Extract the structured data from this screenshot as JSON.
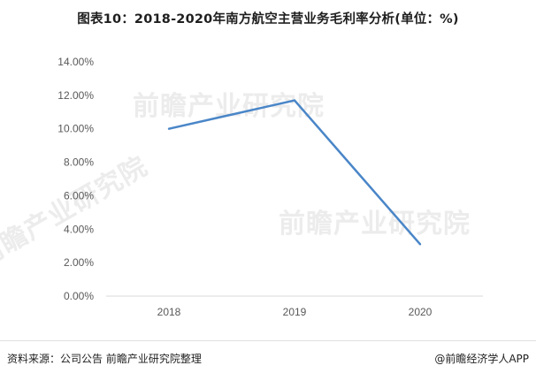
{
  "title": "图表10：2018-2020年南方航空主营业务毛利率分析(单位：%)",
  "source": "资料来源：公司公告 前瞻产业研究院整理",
  "brand": "@前瞻经济学人APP",
  "watermark_text": "前瞻产业研究院",
  "chart_data": {
    "type": "line",
    "title": "图表10：2018-2020年南方航空主营业务毛利率分析(单位：%)",
    "xlabel": "",
    "ylabel": "",
    "categories": [
      "2018",
      "2019",
      "2020"
    ],
    "series": [
      {
        "values": [
          10.0,
          11.7,
          3.1
        ]
      }
    ],
    "ylim": [
      0,
      14
    ],
    "yticks": [
      0,
      2,
      4,
      6,
      8,
      10,
      12,
      14
    ],
    "ytick_labels": [
      "0.00%",
      "2.00%",
      "4.00%",
      "6.00%",
      "8.00%",
      "10.00%",
      "12.00%",
      "14.00%"
    ],
    "grid": false,
    "legend": "none",
    "line_color": "#4a86c8",
    "axis_color": "#d9d9d9"
  }
}
